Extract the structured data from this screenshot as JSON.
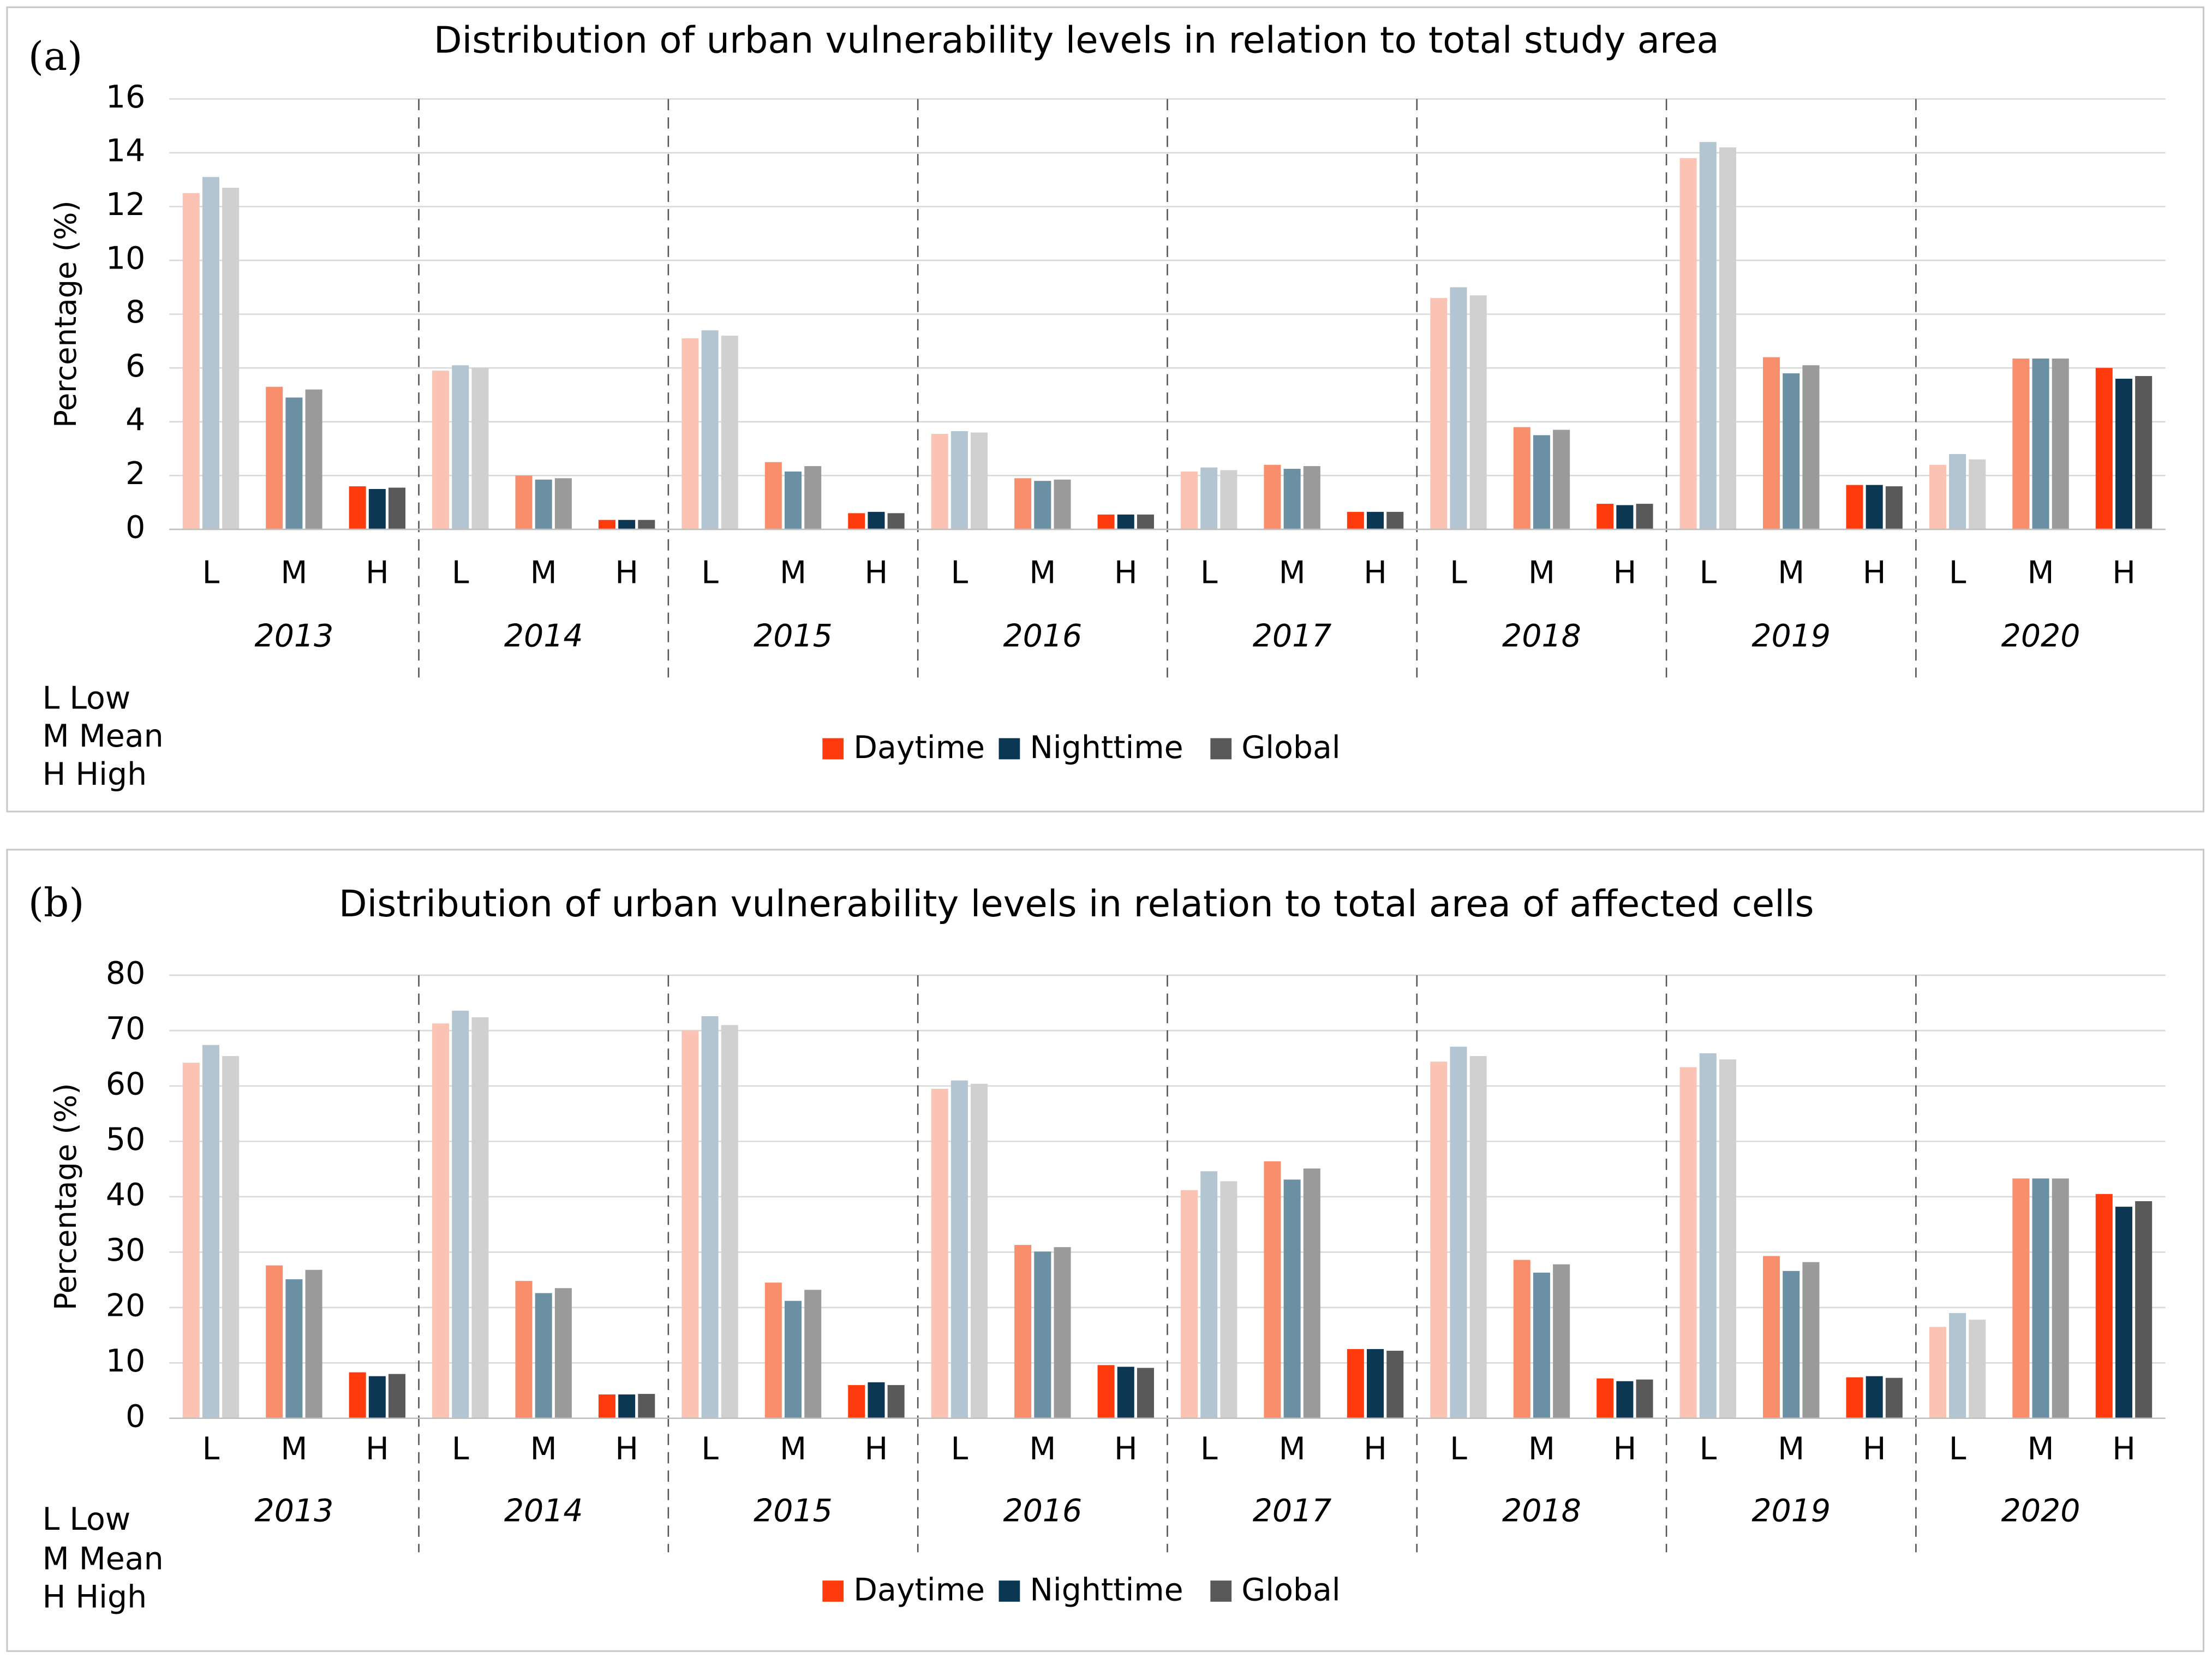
{
  "chart_data": [
    {
      "type": "bar",
      "label": "(a)",
      "title": "Distribution of urban vulnerability levels in relation to total study area",
      "y_label": "Percentage (%)",
      "groups": [
        "2013",
        "2014",
        "2015",
        "2016",
        "2017",
        "2018",
        "2019",
        "2020"
      ],
      "categories": [
        "L",
        "M",
        "H",
        "L",
        "M",
        "H",
        "L",
        "M",
        "H",
        "L",
        "M",
        "H",
        "L",
        "M",
        "H",
        "L",
        "M",
        "H",
        "L",
        "M",
        "H",
        "L",
        "M",
        "H"
      ],
      "notes": [
        "L Low",
        "M Mean",
        "H High"
      ],
      "ylim": [
        0,
        16
      ],
      "yticks": [
        0,
        2,
        4,
        6,
        8,
        10,
        12,
        14,
        16
      ],
      "grid": true,
      "series": [
        {
          "name": "Daytime",
          "color": "#ff3a0d",
          "shades": [
            "#fbc3b3",
            "#f98e6c",
            "#ff3a0d"
          ],
          "values": [
            12.5,
            5.3,
            1.6,
            5.9,
            2.0,
            0.35,
            7.1,
            2.5,
            0.6,
            3.55,
            1.9,
            0.55,
            2.15,
            2.4,
            0.65,
            8.6,
            3.8,
            0.95,
            13.8,
            6.4,
            1.65,
            2.4,
            6.35,
            6.0
          ]
        },
        {
          "name": "Nighttime",
          "color": "#0b3752",
          "shades": [
            "#b3c5d0",
            "#6b8fa3",
            "#0b3752"
          ],
          "values": [
            13.1,
            4.9,
            1.5,
            6.1,
            1.85,
            0.35,
            7.4,
            2.15,
            0.65,
            3.65,
            1.8,
            0.55,
            2.3,
            2.25,
            0.65,
            9.0,
            3.5,
            0.9,
            14.4,
            5.8,
            1.65,
            2.8,
            6.35,
            5.6
          ]
        },
        {
          "name": "Global",
          "color": "#595959",
          "shades": [
            "#d0d0d0",
            "#9a9a9a",
            "#595959"
          ],
          "values": [
            12.7,
            5.2,
            1.55,
            6.0,
            1.9,
            0.35,
            7.2,
            2.35,
            0.6,
            3.6,
            1.85,
            0.55,
            2.2,
            2.35,
            0.65,
            8.7,
            3.7,
            0.95,
            14.2,
            6.1,
            1.6,
            2.6,
            6.35,
            5.7
          ]
        }
      ]
    },
    {
      "type": "bar",
      "label": "(b)",
      "title": "Distribution of urban vulnerability levels in relation to total area of affected cells",
      "y_label": "Percentage (%)",
      "groups": [
        "2013",
        "2014",
        "2015",
        "2016",
        "2017",
        "2018",
        "2019",
        "2020"
      ],
      "categories": [
        "L",
        "M",
        "H",
        "L",
        "M",
        "H",
        "L",
        "M",
        "H",
        "L",
        "M",
        "H",
        "L",
        "M",
        "H",
        "L",
        "M",
        "H",
        "L",
        "M",
        "H",
        "L",
        "M",
        "H"
      ],
      "notes": [
        "L Low",
        "M Mean",
        "H High"
      ],
      "ylim": [
        0,
        80
      ],
      "yticks": [
        0,
        10,
        20,
        30,
        40,
        50,
        60,
        70,
        80
      ],
      "grid": true,
      "series": [
        {
          "name": "Daytime",
          "color": "#ff3a0d",
          "shades": [
            "#fbc3b3",
            "#f98e6c",
            "#ff3a0d"
          ],
          "values": [
            64.2,
            27.6,
            8.3,
            71.3,
            24.8,
            4.3,
            70,
            24.5,
            6,
            59.5,
            31.3,
            9.6,
            41.2,
            46.4,
            12.5,
            64.4,
            28.6,
            7.2,
            63.4,
            29.3,
            7.4,
            16.5,
            43.3,
            40.5
          ]
        },
        {
          "name": "Nighttime",
          "color": "#0b3752",
          "shades": [
            "#b3c5d0",
            "#6b8fa3",
            "#0b3752"
          ],
          "values": [
            67.4,
            25.1,
            7.6,
            73.6,
            22.6,
            4.3,
            72.6,
            21.2,
            6.5,
            61,
            30.1,
            9.3,
            44.6,
            43.1,
            12.5,
            67.1,
            26.3,
            6.7,
            65.9,
            26.6,
            7.6,
            19,
            43.3,
            38.2
          ]
        },
        {
          "name": "Global",
          "color": "#595959",
          "shades": [
            "#d0d0d0",
            "#9a9a9a",
            "#595959"
          ],
          "values": [
            65.4,
            26.8,
            8.0,
            72.4,
            23.5,
            4.4,
            71,
            23.2,
            6,
            60.4,
            30.9,
            9.1,
            42.8,
            45.1,
            12.2,
            65.4,
            27.8,
            7.0,
            64.8,
            28.2,
            7.3,
            17.8,
            43.3,
            39.2
          ]
        }
      ]
    }
  ]
}
